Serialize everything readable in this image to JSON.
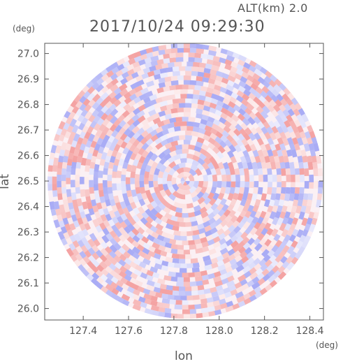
{
  "header": {
    "altitude": "ALT(km) 2.0",
    "timestamp": "2017/10/24 09:29:30"
  },
  "axes": {
    "y_unit": "(deg)",
    "x_unit": "(deg)",
    "xlabel": "lon",
    "ylabel": "lat"
  },
  "colors": {
    "positive": "#f4a3a3",
    "negative": "#a9acf5",
    "neutral": "#ffffff",
    "axis": "#555555"
  },
  "chart_data": {
    "type": "heatmap",
    "title": "2017/10/24 09:29:30",
    "subtitle": "ALT(km) 2.0",
    "xlabel": "lon",
    "ylabel": "lat",
    "x_unit": "(deg)",
    "y_unit": "(deg)",
    "xlim": [
      127.23,
      128.46
    ],
    "ylim": [
      25.955,
      27.04
    ],
    "x_ticks": [
      127.4,
      127.6,
      127.8,
      128.0,
      128.2,
      128.4
    ],
    "x_tick_labels": [
      "127.4",
      "127.6",
      "127.8",
      "128.0",
      "128.2",
      "128.4"
    ],
    "y_ticks": [
      26.0,
      26.1,
      26.2,
      26.3,
      26.4,
      26.5,
      26.6,
      26.7,
      26.8,
      26.9,
      27.0
    ],
    "y_tick_labels": [
      "26.0",
      "26.1",
      "26.2",
      "26.3",
      "26.4",
      "26.5",
      "26.6",
      "26.7",
      "26.8",
      "26.9",
      "27.0"
    ],
    "center": [
      127.85,
      26.5
    ],
    "radius_deg_lat": 0.54,
    "grid": false,
    "colorscale": "diverging red-white-blue"
  }
}
